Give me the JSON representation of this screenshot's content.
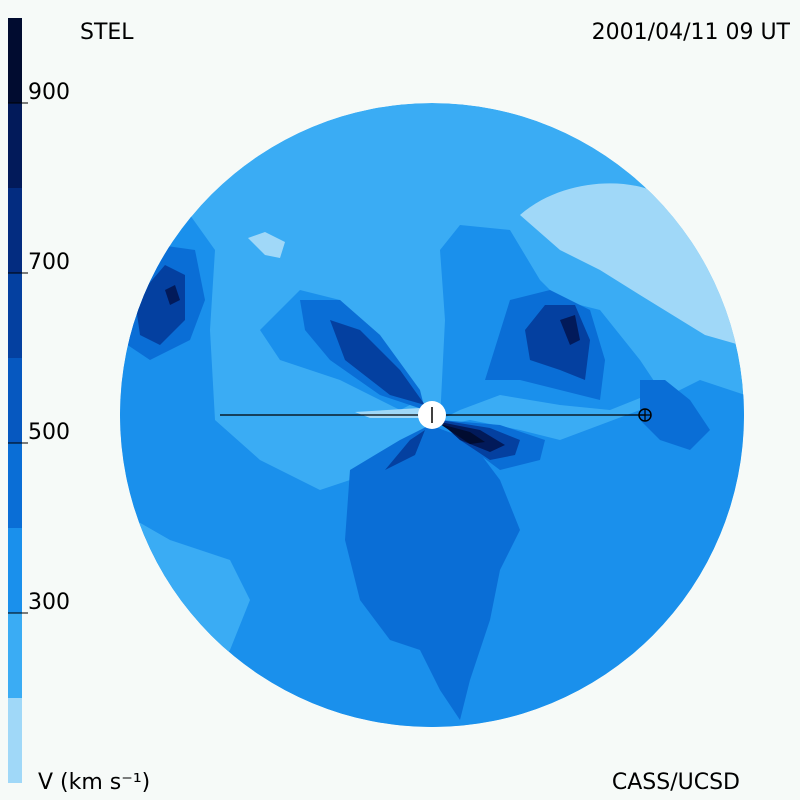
{
  "header": {
    "left": "STEL",
    "right": "2001/04/11 09 UT"
  },
  "footer": {
    "right": "CASS/UCSD"
  },
  "colorbar": {
    "label": "V (km s⁻¹)",
    "lim": [
      100,
      1000
    ],
    "ticks": [
      300,
      500,
      700,
      900
    ],
    "bands": [
      {
        "from": 100,
        "to": 200,
        "color": "#a0d8f8"
      },
      {
        "from": 200,
        "to": 300,
        "color": "#3aacf4"
      },
      {
        "from": 300,
        "to": 400,
        "color": "#1a90ec"
      },
      {
        "from": 400,
        "to": 500,
        "color": "#0a6ed6"
      },
      {
        "from": 500,
        "to": 600,
        "color": "#0658c0"
      },
      {
        "from": 600,
        "to": 700,
        "color": "#0440a0"
      },
      {
        "from": 700,
        "to": 800,
        "color": "#032c80"
      },
      {
        "from": 800,
        "to": 900,
        "color": "#021a5a"
      },
      {
        "from": 900,
        "to": 1000,
        "color": "#010c30"
      }
    ]
  }
}
